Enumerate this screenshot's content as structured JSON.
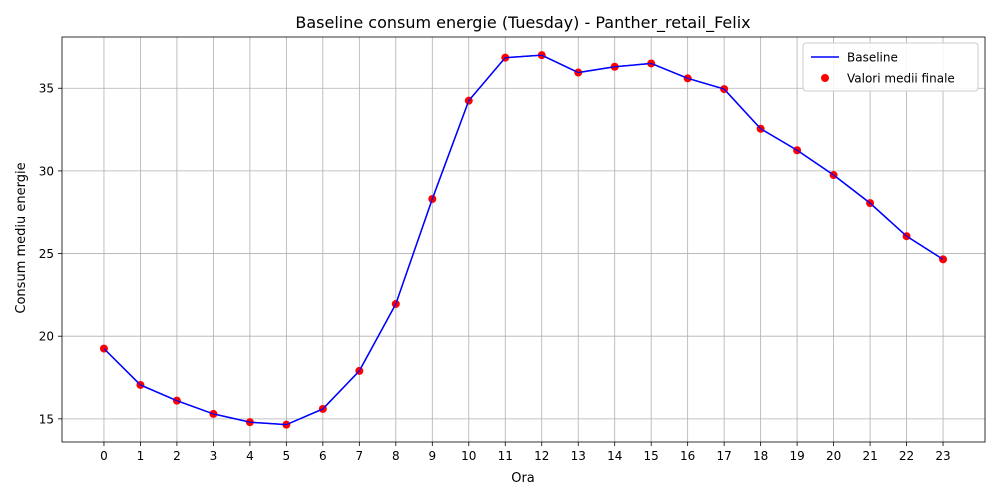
{
  "chart_data": {
    "type": "line",
    "title": "Baseline consum energie (Tuesday) - Panther_retail_Felix",
    "xlabel": "Ora",
    "ylabel": "Consum mediu energie",
    "x": [
      0,
      1,
      2,
      3,
      4,
      5,
      6,
      7,
      8,
      9,
      10,
      11,
      12,
      13,
      14,
      15,
      16,
      17,
      18,
      19,
      20,
      21,
      22,
      23
    ],
    "xlim": [
      -1.15,
      24.15
    ],
    "ylim": [
      13.6,
      38.1
    ],
    "yticks": [
      15,
      20,
      25,
      30,
      35
    ],
    "grid": true,
    "legend_position": "top-right",
    "series": [
      {
        "name": "Baseline",
        "kind": "line",
        "color": "#0000ff",
        "values": [
          19.25,
          17.05,
          16.1,
          15.3,
          14.8,
          14.65,
          15.6,
          17.9,
          21.95,
          28.3,
          34.25,
          36.85,
          37.0,
          35.95,
          36.3,
          36.5,
          35.6,
          34.95,
          32.55,
          31.25,
          29.75,
          28.05,
          26.05,
          24.65
        ]
      },
      {
        "name": "Valori medii finale",
        "kind": "scatter",
        "color": "#ff0000",
        "values": [
          19.25,
          17.05,
          16.1,
          15.3,
          14.8,
          14.65,
          15.6,
          17.9,
          21.95,
          28.3,
          34.25,
          36.85,
          37.0,
          35.95,
          36.3,
          36.5,
          35.6,
          34.95,
          32.55,
          31.25,
          29.75,
          28.05,
          26.05,
          24.65
        ]
      }
    ]
  }
}
